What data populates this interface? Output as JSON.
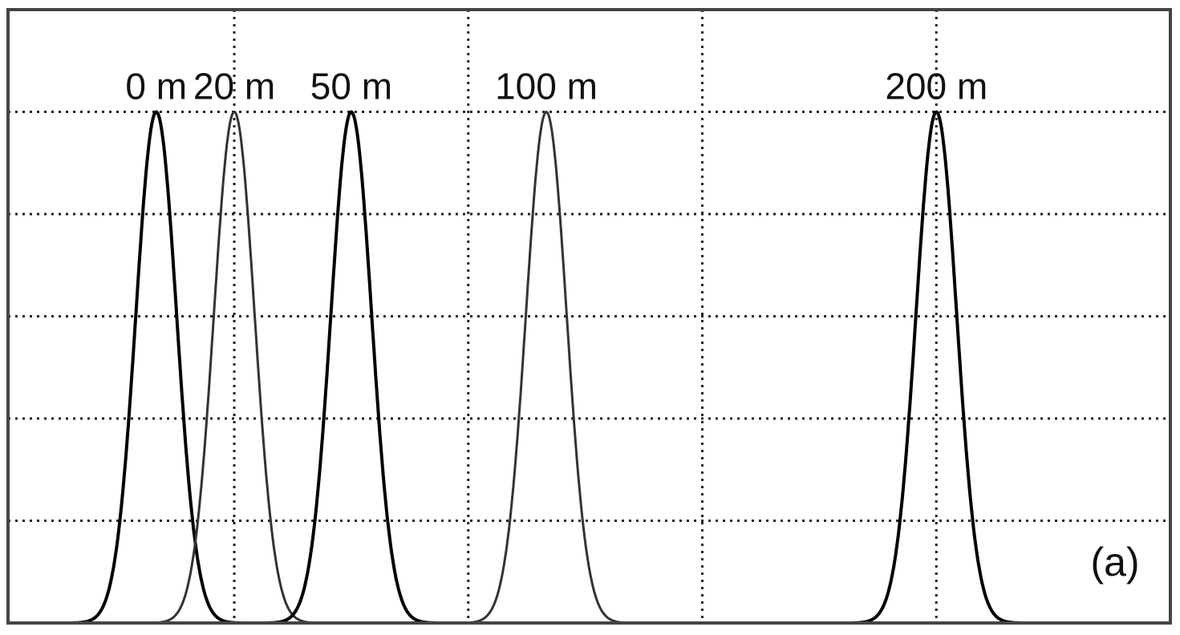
{
  "chart_data": {
    "type": "line",
    "title": "",
    "xlabel": "",
    "ylabel": "",
    "xlim": [
      -38,
      260
    ],
    "ylim": [
      0,
      1.2
    ],
    "grid": true,
    "x_gridlines": [
      20,
      80,
      140,
      200
    ],
    "y_gridlines": [
      0.2,
      0.4,
      0.6,
      0.8,
      1.0
    ],
    "series": [
      {
        "name": "0 m",
        "center": 0,
        "width": 5.2,
        "peak": 1.0,
        "stroke": "#000000",
        "style": "bold"
      },
      {
        "name": "20 m",
        "center": 20,
        "width": 5.2,
        "peak": 1.0,
        "stroke": "#333333",
        "style": "thin"
      },
      {
        "name": "50 m",
        "center": 50,
        "width": 5.2,
        "peak": 1.0,
        "stroke": "#000000",
        "style": "bold"
      },
      {
        "name": "100 m",
        "center": 100,
        "width": 5.2,
        "peak": 1.0,
        "stroke": "#333333",
        "style": "thin"
      },
      {
        "name": "200 m",
        "center": 200,
        "width": 5.2,
        "peak": 1.0,
        "stroke": "#000000",
        "style": "bold"
      }
    ],
    "annotation": "(a)"
  }
}
